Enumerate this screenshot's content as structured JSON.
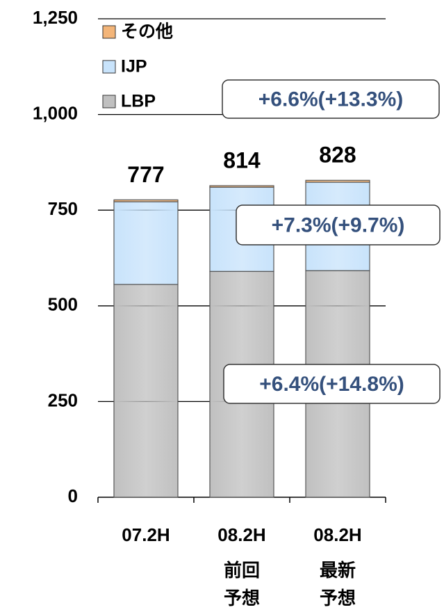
{
  "chart_data": {
    "type": "stacked_bar",
    "categories": [
      "07.2H",
      "08.2H",
      "08.2H"
    ],
    "sublabels": [
      [],
      [
        "前回",
        "予想"
      ],
      [
        "最新",
        "予想"
      ]
    ],
    "series": [
      {
        "name": "LBP",
        "color": "#c0c0c0",
        "values": [
          556,
          590,
          592
        ]
      },
      {
        "name": "IJP",
        "color": "#c8e3fb",
        "values": [
          216,
          220,
          231
        ]
      },
      {
        "name": "その他",
        "color": "#f3b579",
        "values": [
          5,
          4,
          5
        ]
      }
    ],
    "totals": [
      777,
      814,
      828
    ],
    "annotations": [
      "+6.6%(+13.3%)",
      "+7.3%(+9.7%)",
      "+6.4%(+14.8%)"
    ],
    "ylim": [
      0,
      1250
    ],
    "yticks": [
      0,
      250,
      500,
      750,
      {
        "value": 1000,
        "label": "1,000"
      },
      {
        "value": 1250,
        "label": "1,250"
      }
    ],
    "grid": true
  }
}
